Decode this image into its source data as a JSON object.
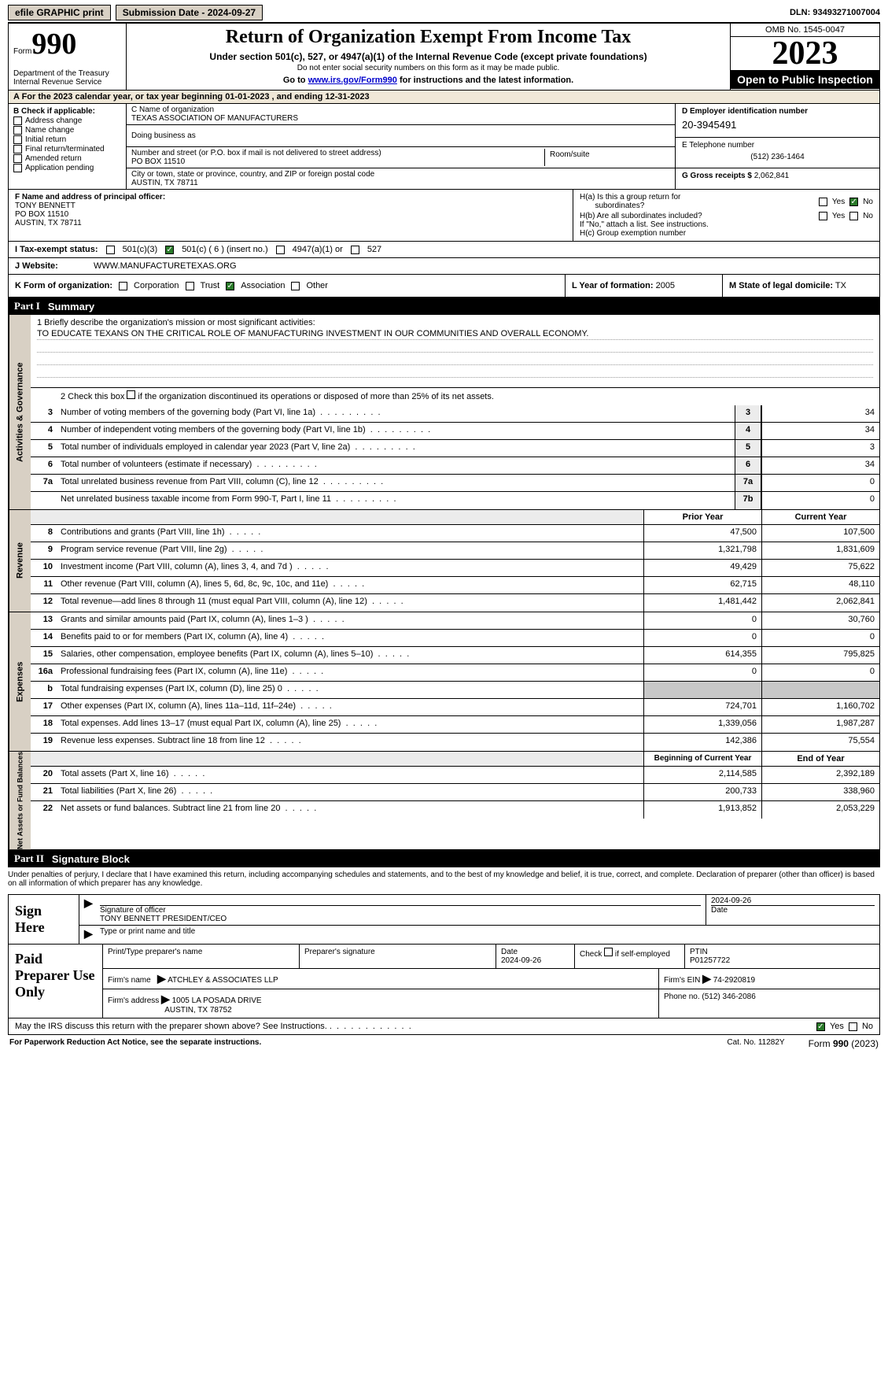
{
  "topbar": {
    "efile": "efile GRAPHIC print",
    "submission": "Submission Date - 2024-09-27",
    "dln": "DLN: 93493271007004"
  },
  "header": {
    "form_label": "Form",
    "form_number": "990",
    "title": "Return of Organization Exempt From Income Tax",
    "subtitle": "Under section 501(c), 527, or 4947(a)(1) of the Internal Revenue Code (except private foundations)",
    "ssn_note": "Do not enter social security numbers on this form as it may be made public.",
    "goto_pre": "Go to ",
    "goto_link": "www.irs.gov/Form990",
    "goto_post": " for instructions and the latest information.",
    "dept": "Department of the Treasury\nInternal Revenue Service",
    "omb": "OMB No. 1545-0047",
    "year": "2023",
    "open_public": "Open to Public Inspection"
  },
  "sectionA": {
    "text": "A For the 2023 calendar year, or tax year beginning 01-01-2023    , and ending 12-31-2023"
  },
  "sectionB": {
    "label": "B Check if applicable:",
    "opts": [
      "Address change",
      "Name change",
      "Initial return",
      "Final return/terminated",
      "Amended return",
      "Application pending"
    ]
  },
  "sectionC": {
    "name_lbl": "C Name of organization",
    "name": "TEXAS ASSOCIATION OF MANUFACTURERS",
    "dba_lbl": "Doing business as",
    "addr_lbl": "Number and street (or P.O. box if mail is not delivered to street address)",
    "room_lbl": "Room/suite",
    "addr": "PO BOX 11510",
    "city_lbl": "City or town, state or province, country, and ZIP or foreign postal code",
    "city": "AUSTIN, TX  78711"
  },
  "sectionD": {
    "ein_lbl": "D Employer identification number",
    "ein": "20-3945491",
    "tel_lbl": "E Telephone number",
    "tel": "(512) 236-1464",
    "gross_lbl": "G Gross receipts $",
    "gross": "2,062,841"
  },
  "sectionF": {
    "lbl": "F  Name and address of principal officer:",
    "name": "TONY BENNETT",
    "addr1": "PO BOX 11510",
    "addr2": "AUSTIN, TX  78711"
  },
  "sectionH": {
    "ha_lbl": "H(a)  Is this a group return for",
    "ha_lbl2": "subordinates?",
    "hb_lbl": "H(b)  Are all subordinates included?",
    "hb_note": "If \"No,\" attach a list. See instructions.",
    "hc_lbl": "H(c)  Group exemption number",
    "yes": "Yes",
    "no": "No"
  },
  "sectionI": {
    "lbl": "I    Tax-exempt status:",
    "c3": "501(c)(3)",
    "c": "501(c) ( 6 ) (insert no.)",
    "a1": "4947(a)(1) or",
    "s527": "527"
  },
  "sectionJ": {
    "lbl": "J   Website:",
    "val": "WWW.MANUFACTURETEXAS.ORG"
  },
  "sectionK": {
    "lbl": "K Form of organization:",
    "corp": "Corporation",
    "trust": "Trust",
    "assoc": "Association",
    "other": "Other",
    "l_lbl": "L Year of formation:",
    "l_val": "2005",
    "m_lbl": "M State of legal domicile:",
    "m_val": "TX"
  },
  "part1": {
    "num": "Part I",
    "title": "Summary"
  },
  "mission": {
    "q1": "1   Briefly describe the organization's mission or most significant activities:",
    "text": "TO EDUCATE TEXANS ON THE CRITICAL ROLE OF MANUFACTURING INVESTMENT IN OUR COMMUNITIES AND OVERALL ECONOMY.",
    "q2_a": "2   Check this box ",
    "q2_b": " if the organization discontinued its operations or disposed of more than 25% of its net assets."
  },
  "governance": {
    "label": "Activities & Governance",
    "lines": [
      {
        "n": "3",
        "t": "Number of voting members of the governing body (Part VI, line 1a)",
        "ref": "3",
        "v": "34"
      },
      {
        "n": "4",
        "t": "Number of independent voting members of the governing body (Part VI, line 1b)",
        "ref": "4",
        "v": "34"
      },
      {
        "n": "5",
        "t": "Total number of individuals employed in calendar year 2023 (Part V, line 2a)",
        "ref": "5",
        "v": "3"
      },
      {
        "n": "6",
        "t": "Total number of volunteers (estimate if necessary)",
        "ref": "6",
        "v": "34"
      },
      {
        "n": "7a",
        "t": "Total unrelated business revenue from Part VIII, column (C), line 12",
        "ref": "7a",
        "v": "0"
      },
      {
        "n": "",
        "t": "Net unrelated business taxable income from Form 990-T, Part I, line 11",
        "ref": "7b",
        "v": "0"
      }
    ]
  },
  "twocol_hdr": {
    "prior": "Prior Year",
    "current": "Current Year",
    "boy": "Beginning of Current Year",
    "eoy": "End of Year"
  },
  "revenue": {
    "label": "Revenue",
    "lines": [
      {
        "n": "8",
        "t": "Contributions and grants (Part VIII, line 1h)",
        "p": "47,500",
        "c": "107,500"
      },
      {
        "n": "9",
        "t": "Program service revenue (Part VIII, line 2g)",
        "p": "1,321,798",
        "c": "1,831,609"
      },
      {
        "n": "10",
        "t": "Investment income (Part VIII, column (A), lines 3, 4, and 7d )",
        "p": "49,429",
        "c": "75,622"
      },
      {
        "n": "11",
        "t": "Other revenue (Part VIII, column (A), lines 5, 6d, 8c, 9c, 10c, and 11e)",
        "p": "62,715",
        "c": "48,110"
      },
      {
        "n": "12",
        "t": "Total revenue—add lines 8 through 11 (must equal Part VIII, column (A), line 12)",
        "p": "1,481,442",
        "c": "2,062,841"
      }
    ]
  },
  "expenses": {
    "label": "Expenses",
    "lines": [
      {
        "n": "13",
        "t": "Grants and similar amounts paid (Part IX, column (A), lines 1–3 )",
        "p": "0",
        "c": "30,760"
      },
      {
        "n": "14",
        "t": "Benefits paid to or for members (Part IX, column (A), line 4)",
        "p": "0",
        "c": "0"
      },
      {
        "n": "15",
        "t": "Salaries, other compensation, employee benefits (Part IX, column (A), lines 5–10)",
        "p": "614,355",
        "c": "795,825"
      },
      {
        "n": "16a",
        "t": "Professional fundraising fees (Part IX, column (A), line 11e)",
        "p": "0",
        "c": "0"
      },
      {
        "n": "b",
        "t": "Total fundraising expenses (Part IX, column (D), line 25) 0",
        "p": "",
        "c": "",
        "shade": true
      },
      {
        "n": "17",
        "t": "Other expenses (Part IX, column (A), lines 11a–11d, 11f–24e)",
        "p": "724,701",
        "c": "1,160,702"
      },
      {
        "n": "18",
        "t": "Total expenses. Add lines 13–17 (must equal Part IX, column (A), line 25)",
        "p": "1,339,056",
        "c": "1,987,287"
      },
      {
        "n": "19",
        "t": "Revenue less expenses. Subtract line 18 from line 12",
        "p": "142,386",
        "c": "75,554"
      }
    ]
  },
  "netassets": {
    "label": "Net Assets or Fund Balances",
    "lines": [
      {
        "n": "20",
        "t": "Total assets (Part X, line 16)",
        "p": "2,114,585",
        "c": "2,392,189"
      },
      {
        "n": "21",
        "t": "Total liabilities (Part X, line 26)",
        "p": "200,733",
        "c": "338,960"
      },
      {
        "n": "22",
        "t": "Net assets or fund balances. Subtract line 21 from line 20",
        "p": "1,913,852",
        "c": "2,053,229"
      }
    ]
  },
  "part2": {
    "num": "Part II",
    "title": "Signature Block"
  },
  "penalty": "Under penalties of perjury, I declare that I have examined this return, including accompanying schedules and statements, and to the best of my knowledge and belief, it is true, correct, and complete. Declaration of preparer (other than officer) is based on all information of which preparer has any knowledge.",
  "sign": {
    "lbl": "Sign Here",
    "sig_lbl": "Signature of officer",
    "name": "TONY BENNETT PRESIDENT/CEO",
    "type_lbl": "Type or print name and title",
    "date_lbl": "Date",
    "date": "2024-09-26"
  },
  "preparer": {
    "lbl": "Paid Preparer Use Only",
    "name_lbl": "Print/Type preparer's name",
    "sig_lbl": "Preparer's signature",
    "date_lbl": "Date",
    "date": "2024-09-26",
    "check_lbl": "Check         if self-employed",
    "ptin_lbl": "PTIN",
    "ptin": "P01257722",
    "firm_name_lbl": "Firm's name",
    "firm_name": "ATCHLEY & ASSOCIATES LLP",
    "firm_ein_lbl": "Firm's EIN",
    "firm_ein": "74-2920819",
    "firm_addr_lbl": "Firm's address",
    "firm_addr1": "1005 LA POSADA DRIVE",
    "firm_addr2": "AUSTIN, TX  78752",
    "phone_lbl": "Phone no.",
    "phone": "(512) 346-2086"
  },
  "discuss": {
    "text": "May the IRS discuss this return with the preparer shown above? See Instructions.",
    "yes": "Yes",
    "no": "No"
  },
  "footer": {
    "left": "For Paperwork Reduction Act Notice, see the separate instructions.",
    "cat": "Cat. No. 11282Y",
    "form": "Form 990 (2023)"
  }
}
